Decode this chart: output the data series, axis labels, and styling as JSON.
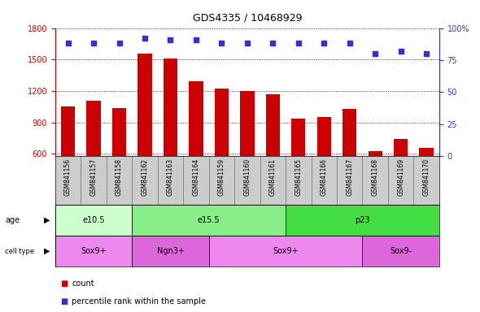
{
  "title": "GDS4335 / 10468929",
  "samples": [
    "GSM841156",
    "GSM841157",
    "GSM841158",
    "GSM841162",
    "GSM841163",
    "GSM841164",
    "GSM841159",
    "GSM841160",
    "GSM841161",
    "GSM841165",
    "GSM841166",
    "GSM841167",
    "GSM841168",
    "GSM841169",
    "GSM841170"
  ],
  "counts": [
    1050,
    1110,
    1040,
    1560,
    1510,
    1290,
    1225,
    1200,
    1170,
    940,
    955,
    1030,
    630,
    740,
    660
  ],
  "percentile_ranks": [
    88,
    88,
    88,
    92,
    91,
    91,
    88,
    88,
    88,
    88,
    88,
    88,
    80,
    82,
    80
  ],
  "ylim_left": [
    580,
    1800
  ],
  "ylim_right": [
    0,
    100
  ],
  "yticks_left": [
    600,
    900,
    1200,
    1500,
    1800
  ],
  "yticks_right": [
    0,
    25,
    50,
    75,
    100
  ],
  "bar_color": "#cc0000",
  "dot_color": "#3333cc",
  "age_groups": [
    {
      "label": "e10.5",
      "start": 0,
      "end": 3,
      "color": "#ccffcc"
    },
    {
      "label": "e15.5",
      "start": 3,
      "end": 9,
      "color": "#88ee88"
    },
    {
      "label": "p23",
      "start": 9,
      "end": 15,
      "color": "#44dd44"
    }
  ],
  "cell_type_groups": [
    {
      "label": "Sox9+",
      "start": 0,
      "end": 3,
      "color": "#ee88ee"
    },
    {
      "label": "Ngn3+",
      "start": 3,
      "end": 6,
      "color": "#dd66dd"
    },
    {
      "label": "Sox9+",
      "start": 6,
      "end": 12,
      "color": "#ee88ee"
    },
    {
      "label": "Sox9-",
      "start": 12,
      "end": 15,
      "color": "#dd66dd"
    }
  ],
  "bg_color": "#ffffff",
  "grid_color": "#000000",
  "sample_box_color": "#cccccc",
  "tick_label_fontsize": 7,
  "bar_label_fontsize": 5.5,
  "annot_fontsize": 7,
  "legend_fontsize": 7
}
